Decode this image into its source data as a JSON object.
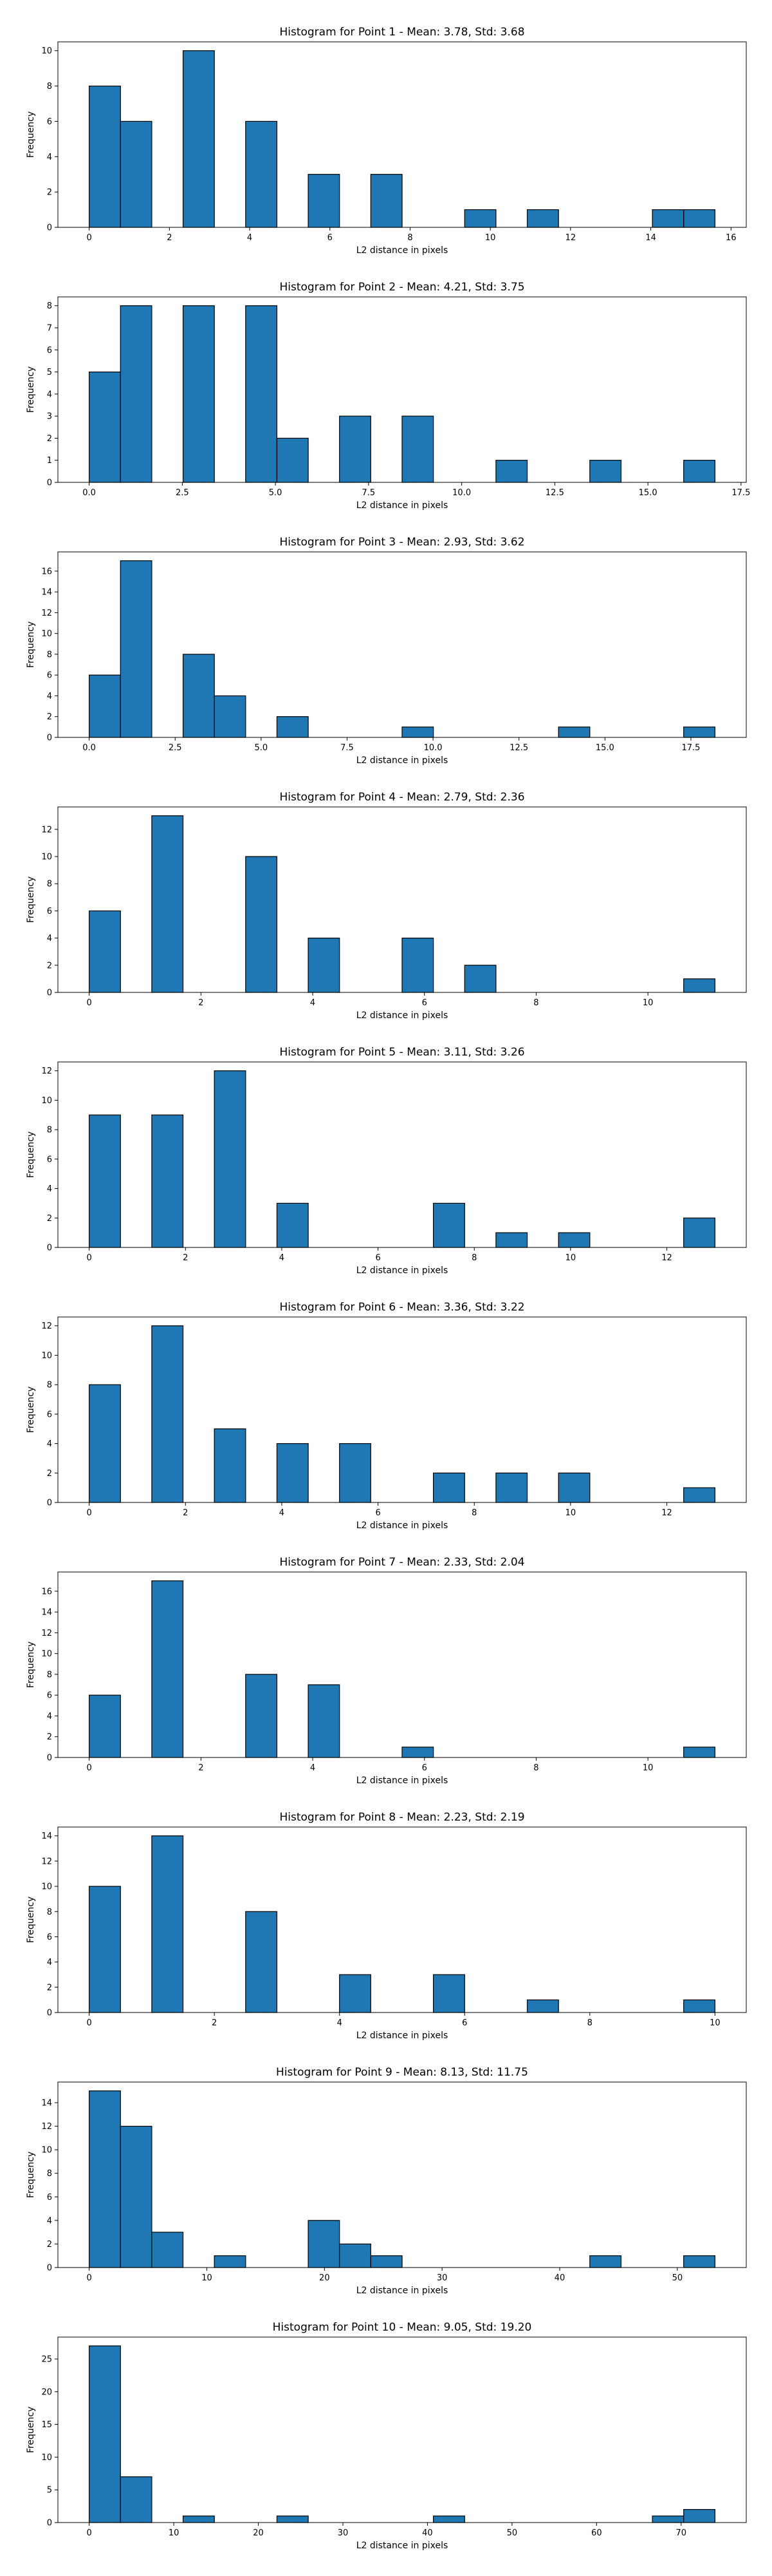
{
  "chart_data": [
    {
      "type": "bar",
      "title": "Histogram for Point 1 - Mean: 3.78, Std: 3.68",
      "xlabel": "L2 distance in pixels",
      "ylabel": "Frequency",
      "xlim": [
        -0.78,
        16.38
      ],
      "ylim": [
        0,
        10.5
      ],
      "xticks": [
        0,
        2,
        4,
        6,
        8,
        10,
        12,
        14,
        16
      ],
      "yticks": [
        0,
        2,
        4,
        6,
        8,
        10
      ],
      "bins": [
        [
          0,
          0.78,
          8
        ],
        [
          0.78,
          1.56,
          6
        ],
        [
          2.34,
          3.12,
          10
        ],
        [
          3.9,
          4.68,
          6
        ],
        [
          5.46,
          6.24,
          3
        ],
        [
          7.02,
          7.8,
          3
        ],
        [
          9.36,
          10.14,
          1
        ],
        [
          10.92,
          11.7,
          1
        ],
        [
          14.04,
          14.82,
          1
        ],
        [
          14.82,
          15.6,
          1
        ]
      ]
    },
    {
      "type": "bar",
      "title": "Histogram for Point 2 - Mean: 4.21, Std: 3.75",
      "xlabel": "L2 distance in pixels",
      "ylabel": "Frequency",
      "xlim": [
        -0.84,
        17.64
      ],
      "ylim": [
        0,
        8.4
      ],
      "xticks": [
        0.0,
        2.5,
        5.0,
        7.5,
        10.0,
        12.5,
        15.0,
        17.5
      ],
      "yticks": [
        0,
        1,
        2,
        3,
        4,
        5,
        6,
        7,
        8
      ],
      "bins": [
        [
          0,
          0.84,
          5
        ],
        [
          0.84,
          1.68,
          8
        ],
        [
          2.52,
          3.36,
          8
        ],
        [
          4.2,
          5.04,
          8
        ],
        [
          5.04,
          5.88,
          2
        ],
        [
          6.72,
          7.56,
          3
        ],
        [
          8.4,
          9.24,
          3
        ],
        [
          10.92,
          11.76,
          1
        ],
        [
          13.44,
          14.28,
          1
        ],
        [
          15.96,
          16.8,
          1
        ]
      ]
    },
    {
      "type": "bar",
      "title": "Histogram for Point 3 - Mean: 2.93, Std: 3.62",
      "xlabel": "L2 distance in pixels",
      "ylabel": "Frequency",
      "xlim": [
        -0.91,
        19.11
      ],
      "ylim": [
        0,
        17.85
      ],
      "xticks": [
        0.0,
        2.5,
        5.0,
        7.5,
        10.0,
        12.5,
        15.0,
        17.5
      ],
      "yticks": [
        0,
        2,
        4,
        6,
        8,
        10,
        12,
        14,
        16
      ],
      "bins": [
        [
          0,
          0.91,
          6
        ],
        [
          0.91,
          1.82,
          17
        ],
        [
          2.73,
          3.64,
          8
        ],
        [
          3.64,
          4.55,
          4
        ],
        [
          5.46,
          6.37,
          2
        ],
        [
          9.1,
          10.01,
          1
        ],
        [
          13.65,
          14.56,
          1
        ],
        [
          17.29,
          18.2,
          1
        ]
      ]
    },
    {
      "type": "bar",
      "title": "Histogram for Point 4 - Mean: 2.79, Std: 2.36",
      "xlabel": "L2 distance in pixels",
      "ylabel": "Frequency",
      "xlim": [
        -0.56,
        11.76
      ],
      "ylim": [
        0,
        13.65
      ],
      "xticks": [
        0,
        2,
        4,
        6,
        8,
        10
      ],
      "yticks": [
        0,
        2,
        4,
        6,
        8,
        10,
        12
      ],
      "bins": [
        [
          0,
          0.56,
          6
        ],
        [
          1.12,
          1.68,
          13
        ],
        [
          2.8,
          3.36,
          10
        ],
        [
          3.92,
          4.48,
          4
        ],
        [
          5.6,
          6.16,
          4
        ],
        [
          6.72,
          7.28,
          2
        ],
        [
          10.64,
          11.2,
          1
        ]
      ]
    },
    {
      "type": "bar",
      "title": "Histogram for Point 5 - Mean: 3.11, Std: 3.26",
      "xlabel": "L2 distance in pixels",
      "ylabel": "Frequency",
      "xlim": [
        -0.65,
        13.65
      ],
      "ylim": [
        0,
        12.6
      ],
      "xticks": [
        0,
        2,
        4,
        6,
        8,
        10,
        12
      ],
      "yticks": [
        0,
        2,
        4,
        6,
        8,
        10,
        12
      ],
      "bins": [
        [
          0,
          0.65,
          9
        ],
        [
          1.3,
          1.95,
          9
        ],
        [
          2.6,
          3.25,
          12
        ],
        [
          3.9,
          4.55,
          3
        ],
        [
          7.15,
          7.8,
          3
        ],
        [
          8.45,
          9.1,
          1
        ],
        [
          9.75,
          10.4,
          1
        ],
        [
          12.35,
          13.0,
          2
        ]
      ]
    },
    {
      "type": "bar",
      "title": "Histogram for Point 6 - Mean: 3.36, Std: 3.22",
      "xlabel": "L2 distance in pixels",
      "ylabel": "Frequency",
      "xlim": [
        -0.65,
        13.65
      ],
      "ylim": [
        0,
        12.6
      ],
      "xticks": [
        0,
        2,
        4,
        6,
        8,
        10,
        12
      ],
      "yticks": [
        0,
        2,
        4,
        6,
        8,
        10,
        12
      ],
      "bins": [
        [
          0,
          0.65,
          8
        ],
        [
          1.3,
          1.95,
          12
        ],
        [
          2.6,
          3.25,
          5
        ],
        [
          3.9,
          4.55,
          4
        ],
        [
          5.2,
          5.85,
          4
        ],
        [
          7.15,
          7.8,
          2
        ],
        [
          8.45,
          9.1,
          2
        ],
        [
          9.75,
          10.4,
          2
        ],
        [
          12.35,
          13.0,
          1
        ]
      ]
    },
    {
      "type": "bar",
      "title": "Histogram for Point 7 - Mean: 2.33, Std: 2.04",
      "xlabel": "L2 distance in pixels",
      "ylabel": "Frequency",
      "xlim": [
        -0.56,
        11.76
      ],
      "ylim": [
        0,
        17.85
      ],
      "xticks": [
        0,
        2,
        4,
        6,
        8,
        10
      ],
      "yticks": [
        0,
        2,
        4,
        6,
        8,
        10,
        12,
        14,
        16
      ],
      "bins": [
        [
          0,
          0.56,
          6
        ],
        [
          1.12,
          1.68,
          17
        ],
        [
          2.8,
          3.36,
          8
        ],
        [
          3.92,
          4.48,
          7
        ],
        [
          5.6,
          6.16,
          1
        ],
        [
          10.64,
          11.2,
          1
        ]
      ]
    },
    {
      "type": "bar",
      "title": "Histogram for Point 8 - Mean: 2.23, Std: 2.19",
      "xlabel": "L2 distance in pixels",
      "ylabel": "Frequency",
      "xlim": [
        -0.5,
        10.5
      ],
      "ylim": [
        0,
        14.7
      ],
      "xticks": [
        0,
        2,
        4,
        6,
        8,
        10
      ],
      "yticks": [
        0,
        2,
        4,
        6,
        8,
        10,
        12,
        14
      ],
      "bins": [
        [
          0,
          0.5,
          10
        ],
        [
          1.0,
          1.5,
          14
        ],
        [
          2.5,
          3.0,
          8
        ],
        [
          4.0,
          4.5,
          3
        ],
        [
          5.5,
          6.0,
          3
        ],
        [
          7.0,
          7.5,
          1
        ],
        [
          9.5,
          10.0,
          1
        ]
      ]
    },
    {
      "type": "bar",
      "title": "Histogram for Point 9 - Mean: 8.13, Std: 11.75",
      "xlabel": "L2 distance in pixels",
      "ylabel": "Frequency",
      "xlim": [
        -2.66,
        55.86
      ],
      "ylim": [
        0,
        15.75
      ],
      "xticks": [
        0,
        10,
        20,
        30,
        40,
        50
      ],
      "yticks": [
        0,
        2,
        4,
        6,
        8,
        10,
        12,
        14
      ],
      "bins": [
        [
          0,
          2.66,
          15
        ],
        [
          2.66,
          5.32,
          12
        ],
        [
          5.32,
          7.98,
          3
        ],
        [
          10.64,
          13.3,
          1
        ],
        [
          18.62,
          21.28,
          4
        ],
        [
          21.28,
          23.94,
          2
        ],
        [
          23.94,
          26.6,
          1
        ],
        [
          42.56,
          45.22,
          1
        ],
        [
          50.54,
          53.2,
          1
        ]
      ]
    },
    {
      "type": "bar",
      "title": "Histogram for Point 10 - Mean: 9.05, Std: 19.20",
      "xlabel": "L2 distance in pixels",
      "ylabel": "Frequency",
      "xlim": [
        -3.7,
        77.7
      ],
      "ylim": [
        0,
        28.35
      ],
      "xticks": [
        0,
        10,
        20,
        30,
        40,
        50,
        60,
        70
      ],
      "yticks": [
        0,
        5,
        10,
        15,
        20,
        25
      ],
      "bins": [
        [
          0,
          3.7,
          27
        ],
        [
          3.7,
          7.4,
          7
        ],
        [
          11.1,
          14.8,
          1
        ],
        [
          22.2,
          25.9,
          1
        ],
        [
          40.7,
          44.4,
          1
        ],
        [
          66.6,
          70.3,
          1
        ],
        [
          70.3,
          74.0,
          2
        ]
      ]
    }
  ],
  "colors": {
    "bar_fill": "#1f77b4",
    "bar_edge": "#000000",
    "axes": "#000000",
    "background": "#ffffff"
  }
}
